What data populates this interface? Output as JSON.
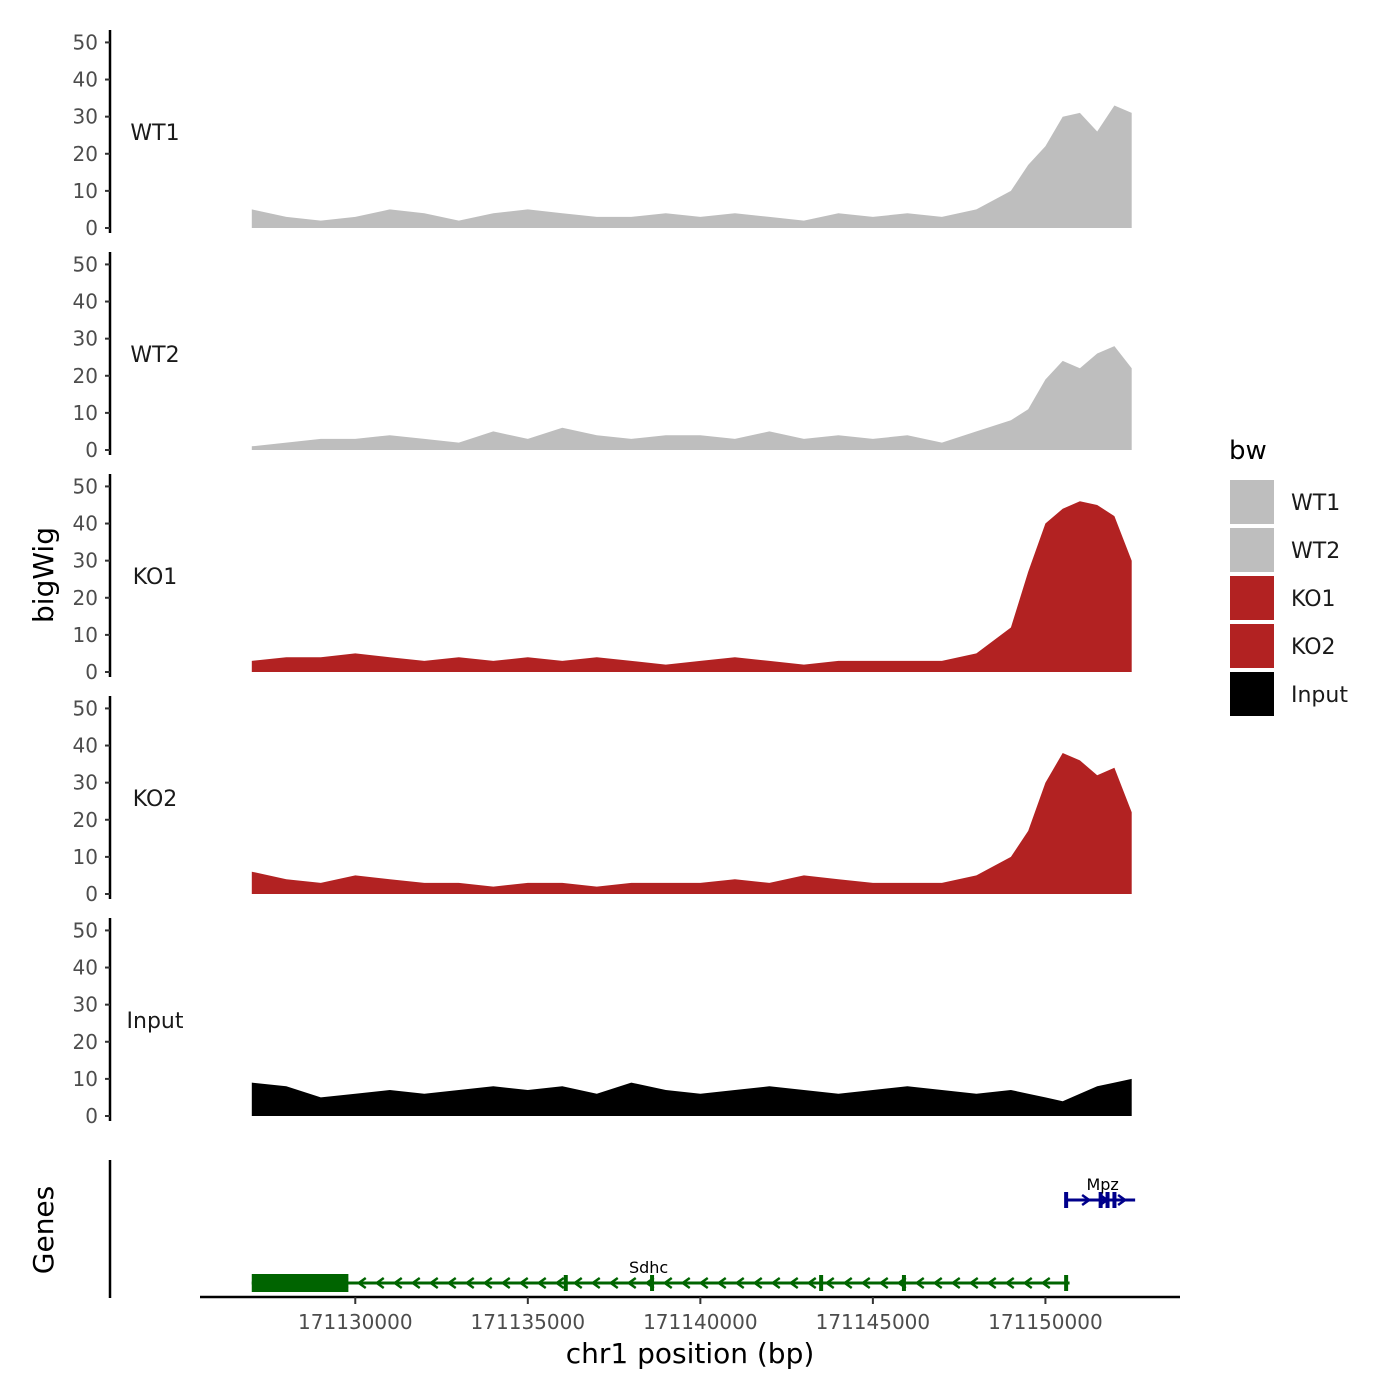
{
  "chart_data": {
    "type": "area",
    "ylabel": "bigWig",
    "xlabel": "chr1 position (bp)",
    "xlim": [
      171125500,
      171153900
    ],
    "ylim": [
      0,
      52
    ],
    "x_ticks": [
      171130000,
      171135000,
      171140000,
      171145000,
      171150000
    ],
    "x_tick_labels": [
      "171130000",
      "171135000",
      "171140000",
      "171145000",
      "171150000"
    ],
    "y_ticks": [
      0,
      10,
      20,
      30,
      40,
      50
    ],
    "y_tick_labels": [
      "0",
      "10",
      "20",
      "30",
      "40",
      "50"
    ],
    "x_data": [
      171127000,
      171128000,
      171129000,
      171130000,
      171131000,
      171132000,
      171133000,
      171134000,
      171135000,
      171136000,
      171137000,
      171138000,
      171139000,
      171140000,
      171141000,
      171142000,
      171143000,
      171144000,
      171145000,
      171146000,
      171147000,
      171148000,
      171149000,
      171149500,
      171150000,
      171150500,
      171151000,
      171151500,
      171152000,
      171152500
    ],
    "series": [
      {
        "name": "WT1",
        "color": "#BEBEBE",
        "values": [
          5,
          3,
          2,
          3,
          5,
          4,
          2,
          4,
          5,
          4,
          3,
          3,
          4,
          3,
          4,
          3,
          2,
          4,
          3,
          4,
          3,
          5,
          10,
          17,
          22,
          30,
          31,
          26,
          33,
          31
        ]
      },
      {
        "name": "WT2",
        "color": "#BEBEBE",
        "values": [
          1,
          2,
          3,
          3,
          4,
          3,
          2,
          5,
          3,
          6,
          4,
          3,
          4,
          4,
          3,
          5,
          3,
          4,
          3,
          4,
          2,
          5,
          8,
          11,
          19,
          24,
          22,
          26,
          28,
          22
        ]
      },
      {
        "name": "KO1",
        "color": "#B22222",
        "values": [
          3,
          4,
          4,
          5,
          4,
          3,
          4,
          3,
          4,
          3,
          4,
          3,
          2,
          3,
          4,
          3,
          2,
          3,
          3,
          3,
          3,
          5,
          12,
          27,
          40,
          44,
          46,
          45,
          42,
          30
        ]
      },
      {
        "name": "KO2",
        "color": "#B22222",
        "values": [
          6,
          4,
          3,
          5,
          4,
          3,
          3,
          2,
          3,
          3,
          2,
          3,
          3,
          3,
          4,
          3,
          5,
          4,
          3,
          3,
          3,
          5,
          10,
          17,
          30,
          38,
          36,
          32,
          34,
          22
        ]
      },
      {
        "name": "Input",
        "color": "#000000",
        "values": [
          9,
          8,
          5,
          6,
          7,
          6,
          7,
          8,
          7,
          8,
          6,
          9,
          7,
          6,
          7,
          8,
          7,
          6,
          7,
          8,
          7,
          6,
          7,
          6,
          5,
          4,
          6,
          8,
          9,
          10
        ]
      }
    ],
    "legend": {
      "title": "bw",
      "position": "right",
      "entries": [
        {
          "label": "WT1",
          "color": "#BEBEBE"
        },
        {
          "label": "WT2",
          "color": "#BEBEBE"
        },
        {
          "label": "KO1",
          "color": "#B22222"
        },
        {
          "label": "KO2",
          "color": "#B22222"
        },
        {
          "label": "Input",
          "color": "#000000"
        }
      ]
    },
    "genes_track": {
      "label": "Genes",
      "genes": [
        {
          "name": "Sdhc",
          "strand": "-",
          "color": "#006400",
          "start": 171127000,
          "end": 171150700,
          "thick_start": 171127000,
          "thick_end": 171129800,
          "exons": [
            171136100,
            171138600,
            171143500,
            171145900,
            171150600
          ]
        },
        {
          "name": "Mpz",
          "strand": "+",
          "color": "#00008B",
          "start": 171150600,
          "end": 171152600,
          "exons": [
            171150600,
            171151600,
            171151800,
            171152000
          ]
        }
      ]
    }
  }
}
